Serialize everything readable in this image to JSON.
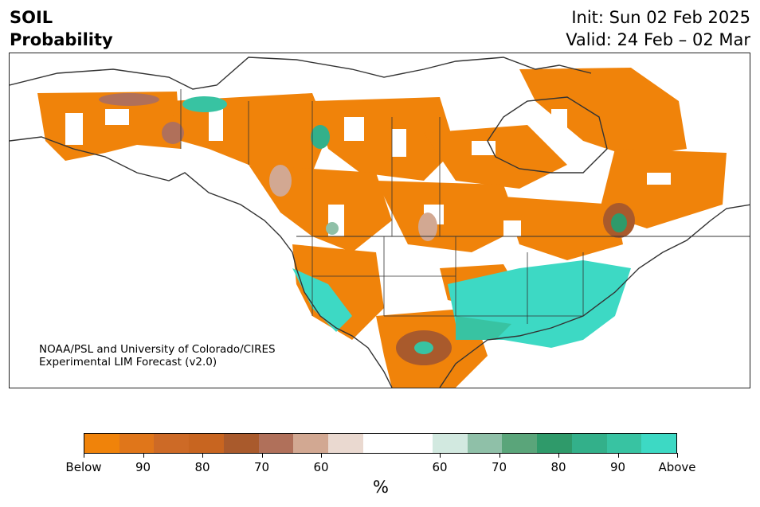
{
  "title": {
    "line1": "SOIL",
    "line2": "Probability"
  },
  "init": "Init: Sun 02 Feb 2025",
  "valid": "Valid: 24 Feb – 02 Mar",
  "credit": {
    "line1": "NOAA/PSL and University of Colorado/CIRES",
    "line2": "Experimental LIM Forecast (v2.0)"
  },
  "map": {
    "below_color": "#f0830a",
    "above_color": "#3dd9c4",
    "border_color": "#333333"
  },
  "colorbar": {
    "segments": [
      "#f0830a",
      "#e0761a",
      "#cd6a26",
      "#c86520",
      "#a95a2c",
      "#b0705a",
      "#d2a892",
      "#ead9d0",
      "#ffffff",
      "#ffffff",
      "#d2e9e0",
      "#8fc0a8",
      "#5aa57a",
      "#2f9a6a",
      "#33b08a",
      "#38c3a2",
      "#3dd9c4"
    ],
    "ticks": [
      "Below",
      "90",
      "80",
      "70",
      "60",
      "60",
      "70",
      "80",
      "90",
      "Above"
    ],
    "units": "%"
  }
}
